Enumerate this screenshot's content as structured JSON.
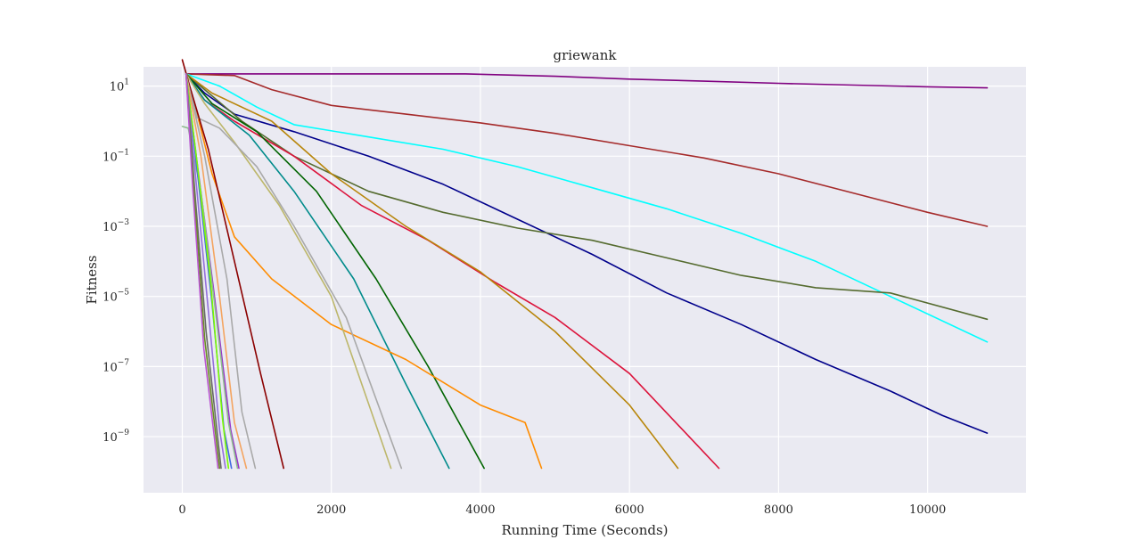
{
  "chart_data": {
    "type": "line",
    "title": "griewank",
    "xlabel": "Running Time (Seconds)",
    "ylabel": "Fitness",
    "xlim": [
      -520,
      11320
    ],
    "ylim_log10": [
      -10.6,
      1.55
    ],
    "yscale": "log",
    "grid": true,
    "background": "#eaeaf2",
    "x_ticks": [
      {
        "value": 0,
        "label": "0"
      },
      {
        "value": 2000,
        "label": "2000"
      },
      {
        "value": 4000,
        "label": "4000"
      },
      {
        "value": 6000,
        "label": "6000"
      },
      {
        "value": 8000,
        "label": "8000"
      },
      {
        "value": 10000,
        "label": "10000"
      }
    ],
    "y_ticks": [
      {
        "exp": 1,
        "base": "10",
        "sup": "1"
      },
      {
        "exp": -1,
        "base": "10",
        "sup": "−1"
      },
      {
        "exp": -3,
        "base": "10",
        "sup": "−3"
      },
      {
        "exp": -5,
        "base": "10",
        "sup": "−5"
      },
      {
        "exp": -7,
        "base": "10",
        "sup": "−7"
      },
      {
        "exp": -9,
        "base": "10",
        "sup": "−9"
      }
    ],
    "series": [
      {
        "color": "#800080",
        "points": [
          [
            50,
            1.35
          ],
          [
            3800,
            1.35
          ],
          [
            5000,
            1.28
          ],
          [
            6000,
            1.2
          ],
          [
            7000,
            1.14
          ],
          [
            8000,
            1.08
          ],
          [
            9000,
            1.03
          ],
          [
            10000,
            0.98
          ],
          [
            10800,
            0.95
          ]
        ]
      },
      {
        "color": "#a52a2a",
        "points": [
          [
            50,
            1.35
          ],
          [
            700,
            1.3
          ],
          [
            1200,
            0.9
          ],
          [
            2000,
            0.45
          ],
          [
            3000,
            0.2
          ],
          [
            4000,
            -0.05
          ],
          [
            5000,
            -0.35
          ],
          [
            6000,
            -0.7
          ],
          [
            7000,
            -1.05
          ],
          [
            8000,
            -1.5
          ],
          [
            9000,
            -2.05
          ],
          [
            10000,
            -2.6
          ],
          [
            10800,
            -3.0
          ]
        ]
      },
      {
        "color": "#00ffff",
        "points": [
          [
            50,
            1.35
          ],
          [
            500,
            1.0
          ],
          [
            1000,
            0.4
          ],
          [
            1500,
            -0.1
          ],
          [
            2500,
            -0.45
          ],
          [
            3500,
            -0.8
          ],
          [
            4500,
            -1.3
          ],
          [
            5500,
            -1.9
          ],
          [
            6500,
            -2.5
          ],
          [
            7500,
            -3.2
          ],
          [
            8500,
            -4.0
          ],
          [
            9500,
            -5.0
          ],
          [
            10800,
            -6.3
          ]
        ]
      },
      {
        "color": "#00008b",
        "points": [
          [
            50,
            1.35
          ],
          [
            300,
            0.8
          ],
          [
            700,
            0.2
          ],
          [
            1500,
            -0.3
          ],
          [
            2500,
            -1.0
          ],
          [
            3500,
            -1.8
          ],
          [
            4500,
            -2.8
          ],
          [
            5500,
            -3.8
          ],
          [
            6500,
            -4.9
          ],
          [
            7500,
            -5.8
          ],
          [
            8500,
            -6.8
          ],
          [
            9500,
            -7.7
          ],
          [
            10200,
            -8.4
          ],
          [
            10800,
            -8.9
          ]
        ]
      },
      {
        "color": "#556b2f",
        "points": [
          [
            50,
            1.35
          ],
          [
            300,
            0.9
          ],
          [
            800,
            0.0
          ],
          [
            1500,
            -1.0
          ],
          [
            2500,
            -2.0
          ],
          [
            3500,
            -2.6
          ],
          [
            4500,
            -3.05
          ],
          [
            5500,
            -3.4
          ],
          [
            6500,
            -3.9
          ],
          [
            7500,
            -4.4
          ],
          [
            8500,
            -4.75
          ],
          [
            9500,
            -4.9
          ],
          [
            10800,
            -5.65
          ]
        ]
      },
      {
        "color": "#dc143c",
        "points": [
          [
            50,
            1.35
          ],
          [
            300,
            0.6
          ],
          [
            700,
            0.0
          ],
          [
            1500,
            -1.0
          ],
          [
            2400,
            -2.4
          ],
          [
            3300,
            -3.4
          ],
          [
            4200,
            -4.6
          ],
          [
            5000,
            -5.6
          ],
          [
            6000,
            -7.2
          ],
          [
            7200,
            -9.9
          ]
        ]
      },
      {
        "color": "#b8860b",
        "points": [
          [
            50,
            1.35
          ],
          [
            400,
            0.8
          ],
          [
            1200,
            0.0
          ],
          [
            2000,
            -1.5
          ],
          [
            3000,
            -3.0
          ],
          [
            4000,
            -4.3
          ],
          [
            5000,
            -6.0
          ],
          [
            6000,
            -8.1
          ],
          [
            6650,
            -9.9
          ]
        ]
      },
      {
        "color": "#006400",
        "points": [
          [
            50,
            1.35
          ],
          [
            400,
            0.5
          ],
          [
            1000,
            -0.3
          ],
          [
            1800,
            -2.0
          ],
          [
            2600,
            -4.5
          ],
          [
            3300,
            -7.0
          ],
          [
            4050,
            -9.9
          ]
        ]
      },
      {
        "color": "#008b8b",
        "points": [
          [
            50,
            1.35
          ],
          [
            300,
            0.6
          ],
          [
            900,
            -0.4
          ],
          [
            1500,
            -2.0
          ],
          [
            2300,
            -4.5
          ],
          [
            3000,
            -7.5
          ],
          [
            3580,
            -9.9
          ]
        ]
      },
      {
        "color": "#ff8c00",
        "points": [
          [
            50,
            1.35
          ],
          [
            200,
            0.2
          ],
          [
            400,
            -1.5
          ],
          [
            700,
            -3.3
          ],
          [
            1200,
            -4.5
          ],
          [
            2000,
            -5.8
          ],
          [
            3000,
            -6.8
          ],
          [
            4000,
            -8.1
          ],
          [
            4600,
            -8.6
          ],
          [
            4820,
            -9.9
          ]
        ]
      },
      {
        "color": "#bdb76b",
        "points": [
          [
            50,
            1.35
          ],
          [
            300,
            0.5
          ],
          [
            700,
            -0.6
          ],
          [
            1300,
            -2.4
          ],
          [
            2000,
            -5.0
          ],
          [
            2800,
            -9.9
          ]
        ]
      },
      {
        "color": "#a9a9a9",
        "points": [
          [
            50,
            1.35
          ],
          [
            200,
            0.1
          ],
          [
            500,
            -0.2
          ],
          [
            1000,
            -1.3
          ],
          [
            1500,
            -3.0
          ],
          [
            2200,
            -5.6
          ],
          [
            2940,
            -9.9
          ]
        ]
      },
      {
        "color": "#8b0000",
        "points": [
          [
            0,
            1.75
          ],
          [
            100,
            1.0
          ],
          [
            350,
            -0.8
          ],
          [
            700,
            -4.0
          ],
          [
            1050,
            -7.2
          ],
          [
            1360,
            -9.9
          ]
        ]
      },
      {
        "color": "#a9a9a9",
        "points": [
          [
            50,
            1.35
          ],
          [
            300,
            -1.0
          ],
          [
            600,
            -4.5
          ],
          [
            800,
            -8.3
          ],
          [
            980,
            -9.9
          ]
        ]
      },
      {
        "color": "#f4a460",
        "points": [
          [
            50,
            1.35
          ],
          [
            250,
            -1.0
          ],
          [
            500,
            -5.0
          ],
          [
            700,
            -8.6
          ],
          [
            860,
            -9.9
          ]
        ]
      },
      {
        "color": "#9932cc",
        "points": [
          [
            50,
            1.35
          ],
          [
            200,
            -1.2
          ],
          [
            420,
            -4.8
          ],
          [
            650,
            -8.8
          ],
          [
            760,
            -9.9
          ]
        ]
      },
      {
        "color": "#8fbc8f",
        "points": [
          [
            0,
            -0.15
          ],
          [
            80,
            -0.2
          ],
          [
            250,
            -2.0
          ],
          [
            450,
            -5.5
          ],
          [
            620,
            -8.6
          ],
          [
            740,
            -9.9
          ]
        ]
      },
      {
        "color": "#4169e1",
        "points": [
          [
            50,
            1.35
          ],
          [
            200,
            -1.4
          ],
          [
            400,
            -5.2
          ],
          [
            560,
            -8.8
          ],
          [
            660,
            -9.9
          ]
        ]
      },
      {
        "color": "#7cfc00",
        "points": [
          [
            50,
            1.35
          ],
          [
            200,
            -1.2
          ],
          [
            380,
            -4.6
          ],
          [
            540,
            -8.5
          ],
          [
            620,
            -9.9
          ]
        ]
      },
      {
        "color": "#9370db",
        "points": [
          [
            50,
            1.35
          ],
          [
            180,
            -1.6
          ],
          [
            350,
            -5.4
          ],
          [
            500,
            -8.8
          ],
          [
            580,
            -9.9
          ]
        ]
      },
      {
        "color": "#696969",
        "points": [
          [
            50,
            1.35
          ],
          [
            160,
            -1.8
          ],
          [
            320,
            -6.0
          ],
          [
            520,
            -9.9
          ]
        ]
      },
      {
        "color": "#6b8e23",
        "points": [
          [
            50,
            1.35
          ],
          [
            150,
            -1.8
          ],
          [
            300,
            -6.2
          ],
          [
            500,
            -9.9
          ]
        ]
      },
      {
        "color": "#ba55d3",
        "points": [
          [
            50,
            1.35
          ],
          [
            140,
            -1.9
          ],
          [
            290,
            -6.5
          ],
          [
            480,
            -9.9
          ]
        ]
      }
    ]
  }
}
